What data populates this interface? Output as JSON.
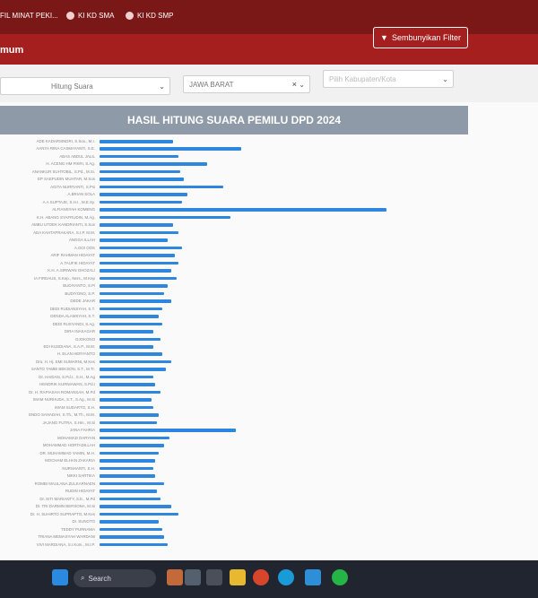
{
  "nav": {
    "items": [
      {
        "label": "FIL MINAT PEKI...",
        "icon": "person-icon"
      },
      {
        "label": "KI KD SMA",
        "icon": "person-icon"
      },
      {
        "label": "KI KD SMP",
        "icon": "person-icon"
      }
    ]
  },
  "header": {
    "subtitle": "mum",
    "filter_button": "Sembunyikan Filter"
  },
  "filters": {
    "type_value": "Hitung Suara",
    "province_value": "JAWA BARAT",
    "city_placeholder": "Pilih Kabupaten/Kota"
  },
  "chart_title": "HASIL HITUNG SUARA PEMILU DPD 2024",
  "colors": {
    "bar": "#2e86de",
    "header": "#a51f1f",
    "topbar": "#7a1717",
    "chart_title_bg": "#8e9aa8"
  },
  "chart_data": {
    "type": "bar",
    "orientation": "horizontal",
    "title": "HASIL HITUNG SUARA PEMILU DPD 2024",
    "categories": [
      "ADE KADARSINDRI, S.Sos., M.I.",
      "AANYA RINA CASMAYANTI, S.E.",
      "ABAS ABDUL JALIL",
      "H. ACENG HM FIKRI, S.Ag.",
      "ANANKUR SUHTOBIL, S.Pd., M.Si.",
      "EP SAEPUDIN MUHTAR, M.Sos",
      "AGITA NURFIANTI, S.Psi",
      "A.BRIAN SOLA",
      "A.A SUPTAJE, S.H.I., M.E.Sy.",
      "ALFIANSYAH KOMENG",
      "K.H. ABANG SYAFRUDIN, M.Ag.",
      "AMBU UTOEK KANDRIANTI, S.Sos",
      "ADA KAHTAPRAKARA, S.I.P. M.M.",
      "ANGGA ILLAH",
      "A.OOI OOS",
      "ARIF RAHMAN HIDAYAT",
      "A.TAUFIK HIDAYAT",
      "K.H. A.SIRIWAN GHOZALI",
      "IA FIRDAUS, S.Kep., Ners., M.Kep",
      "BUDIYANTO, S.Pi",
      "BUDIYONO, S.P.",
      "DEDE JAKAR",
      "DEDI RUDIANSYAH, S.T.",
      "DENDA ALAMSYAH, S.T.",
      "DEDI RUSYANDI, S.Ag.",
      "DIRA INAKAGAR",
      "DJOKONO",
      "EDI KUSDIANA, S.A.P., M.M.",
      "H. ELAN HERYANTO",
      "Dra. H. Hj. EMI SUMARNI, M.Kes",
      "SANTO TAMBI BEKSON, S.T., M.Tr.",
      "Dr. HAIDAN, S.Pd.I., S.H., M.Ag",
      "HENDRIK KURNIAWAN, S.Pd.I",
      "Dr. H. RAPIASAH ROMANSAH, M.Pd",
      "IMAM NURHUDA, S.T., S.Ag., M.Si",
      "IMAM SUDARTO, S.H.",
      "ENDO SAHADAH, S.Th., M.Th., M.M.",
      "JAJANG FUTRA, S.Hm., M.Si",
      "JANA FAHRIA",
      "MOHAMAD DARYAN",
      "MOHAMMAD HORTADILLAH",
      "DR. MUHAMMAD YAMIN, M.H.",
      "MOCHAM ELHAN ZAKARIA",
      "NURSHANTI, S.H.",
      "NIKKI SARTIKA",
      "ROMBI MAULANA ZULKARNAEN",
      "RUDIN HIDAYAT",
      "Dr. SITI MARIANTY, S.E., M.Pd",
      "Dr. TRI DARMIN BERSONA, M.Si",
      "Dr. H. SUHIRTO SUPRAPTO, M.Kes",
      "Dr. SUNOTO",
      "TEDDY PURNAMA",
      "TRIANA MEMASYAH WARDANI",
      "VIVI MARDIANA, S.I.Kom., M.I.P."
    ],
    "values": [
      82,
      158,
      88,
      120,
      90,
      94,
      138,
      98,
      92,
      320,
      146,
      82,
      88,
      76,
      92,
      84,
      88,
      80,
      86,
      76,
      72,
      80,
      70,
      66,
      70,
      60,
      68,
      60,
      70,
      80,
      74,
      60,
      62,
      68,
      58,
      60,
      66,
      64,
      152,
      78,
      72,
      66,
      62,
      60,
      62,
      72,
      64,
      68,
      80,
      88,
      66,
      70,
      72,
      76
    ],
    "xlabel": "",
    "ylabel": ""
  },
  "taskbar": {
    "search_label": "Search"
  }
}
